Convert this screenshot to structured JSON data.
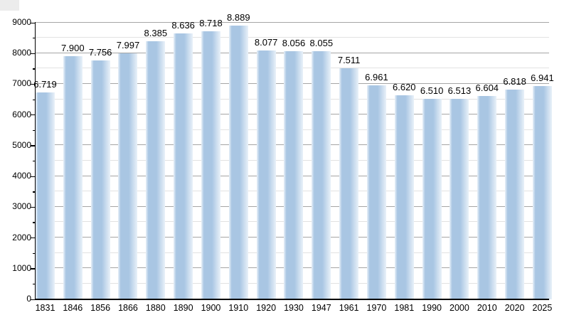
{
  "chart_data": {
    "type": "bar",
    "title": "",
    "xlabel": "",
    "ylabel": "",
    "categories": [
      "1831",
      "1846",
      "1856",
      "1866",
      "1880",
      "1890",
      "1900",
      "1910",
      "1920",
      "1930",
      "1947",
      "1961",
      "1970",
      "1981",
      "1990",
      "2000",
      "2010",
      "2020",
      "2025"
    ],
    "values": [
      6719,
      7900,
      7756,
      7997,
      8385,
      8636,
      8718,
      8889,
      8077,
      8056,
      8055,
      7511,
      6961,
      6620,
      6510,
      6513,
      6604,
      6818,
      6941
    ],
    "value_labels": [
      "6.719",
      "7.900",
      "7.756",
      "7.997",
      "8.385",
      "8.636",
      "8.718",
      "8.889",
      "8.077",
      "8.056",
      "8.055",
      "7.511",
      "6.961",
      "6.620",
      "6.510",
      "6.513",
      "6.604",
      "6.818",
      "6.941"
    ],
    "ylim": [
      0,
      9000
    ],
    "y_major_step": 1000,
    "y_minor_step": 500,
    "y_tick_labels": [
      "0",
      "1000",
      "2000",
      "3000",
      "4000",
      "5000",
      "6000",
      "7000",
      "8000",
      "9000"
    ],
    "grid": "horizontal-major-and-minor",
    "legend": "none",
    "colors": {
      "bar_fill": "#a9c6e3",
      "bar_fill_edge": "#e9f1f9",
      "grid_major": "#a5a5a5",
      "grid_minor": "#e2e2e2",
      "axis": "#000000",
      "text": "#000000",
      "background": "#ffffff"
    }
  }
}
